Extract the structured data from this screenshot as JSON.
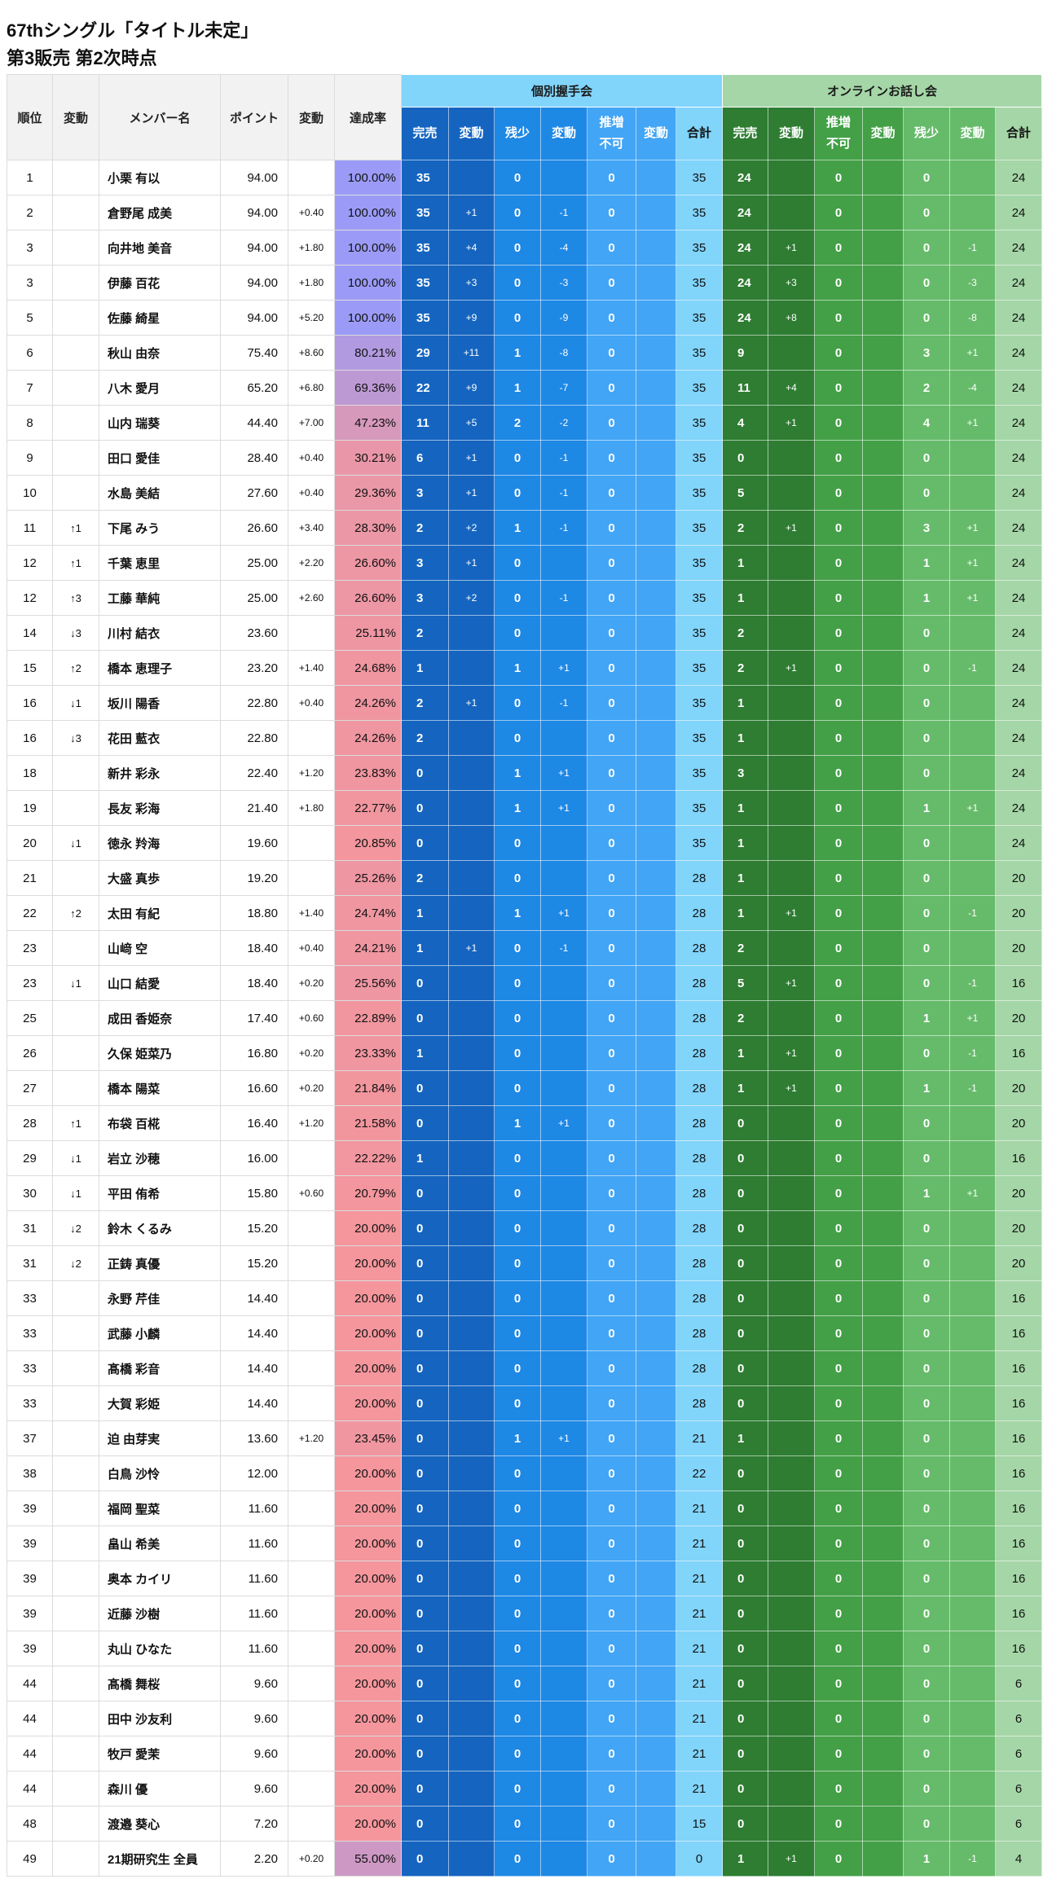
{
  "title": "67thシングル「タイトル未定」",
  "subtitle": "第3販売 第2次時点",
  "headers": {
    "rank": "順位",
    "move": "変動",
    "name": "メンバー名",
    "points": "ポイント",
    "delta": "変動",
    "rate": "達成率",
    "handshake_group": "個別握手会",
    "online_group": "オンラインお話し会",
    "handshake_cols": [
      "完売",
      "変動",
      "残少",
      "変動",
      "推増\n不可",
      "変動",
      "合計"
    ],
    "online_cols": [
      "完売",
      "変動",
      "推増\n不可",
      "変動",
      "残少",
      "変動",
      "合計"
    ]
  },
  "colors": {
    "handshake": [
      "#1565c0",
      "#1e88e5",
      "#42a5f5",
      "#81d4fa"
    ],
    "online": [
      "#2e7d32",
      "#43a047",
      "#66bb6a",
      "#a5d6a7"
    ],
    "rate_high": "#9b9bf7",
    "rate_low": "#f4969c"
  },
  "rows": [
    {
      "rank": "1",
      "move": "",
      "name": "小栗 有以",
      "points": "94.00",
      "delta": "",
      "rate": "100.00%",
      "handshake": [
        "35",
        "",
        "0",
        "",
        "0",
        "",
        "35"
      ],
      "online": [
        "24",
        "",
        "0",
        "",
        "0",
        "",
        "24"
      ]
    },
    {
      "rank": "2",
      "move": "",
      "name": "倉野尾 成美",
      "points": "94.00",
      "delta": "+0.40",
      "rate": "100.00%",
      "handshake": [
        "35",
        "+1",
        "0",
        "-1",
        "0",
        "",
        "35"
      ],
      "online": [
        "24",
        "",
        "0",
        "",
        "0",
        "",
        "24"
      ]
    },
    {
      "rank": "3",
      "move": "",
      "name": "向井地 美音",
      "points": "94.00",
      "delta": "+1.80",
      "rate": "100.00%",
      "handshake": [
        "35",
        "+4",
        "0",
        "-4",
        "0",
        "",
        "35"
      ],
      "online": [
        "24",
        "+1",
        "0",
        "",
        "0",
        "-1",
        "24"
      ]
    },
    {
      "rank": "3",
      "move": "",
      "name": "伊藤 百花",
      "points": "94.00",
      "delta": "+1.80",
      "rate": "100.00%",
      "handshake": [
        "35",
        "+3",
        "0",
        "-3",
        "0",
        "",
        "35"
      ],
      "online": [
        "24",
        "+3",
        "0",
        "",
        "0",
        "-3",
        "24"
      ]
    },
    {
      "rank": "5",
      "move": "",
      "name": "佐藤 綺星",
      "points": "94.00",
      "delta": "+5.20",
      "rate": "100.00%",
      "handshake": [
        "35",
        "+9",
        "0",
        "-9",
        "0",
        "",
        "35"
      ],
      "online": [
        "24",
        "+8",
        "0",
        "",
        "0",
        "-8",
        "24"
      ]
    },
    {
      "rank": "6",
      "move": "",
      "name": "秋山 由奈",
      "points": "75.40",
      "delta": "+8.60",
      "rate": "80.21%",
      "handshake": [
        "29",
        "+11",
        "1",
        "-8",
        "0",
        "",
        "35"
      ],
      "online": [
        "9",
        "",
        "0",
        "",
        "3",
        "+1",
        "24"
      ]
    },
    {
      "rank": "7",
      "move": "",
      "name": "八木 愛月",
      "points": "65.20",
      "delta": "+6.80",
      "rate": "69.36%",
      "handshake": [
        "22",
        "+9",
        "1",
        "-7",
        "0",
        "",
        "35"
      ],
      "online": [
        "11",
        "+4",
        "0",
        "",
        "2",
        "-4",
        "24"
      ]
    },
    {
      "rank": "8",
      "move": "",
      "name": "山内 瑞葵",
      "points": "44.40",
      "delta": "+7.00",
      "rate": "47.23%",
      "handshake": [
        "11",
        "+5",
        "2",
        "-2",
        "0",
        "",
        "35"
      ],
      "online": [
        "4",
        "+1",
        "0",
        "",
        "4",
        "+1",
        "24"
      ]
    },
    {
      "rank": "9",
      "move": "",
      "name": "田口 愛佳",
      "points": "28.40",
      "delta": "+0.40",
      "rate": "30.21%",
      "handshake": [
        "6",
        "+1",
        "0",
        "-1",
        "0",
        "",
        "35"
      ],
      "online": [
        "0",
        "",
        "0",
        "",
        "0",
        "",
        "24"
      ]
    },
    {
      "rank": "10",
      "move": "",
      "name": "水島 美結",
      "points": "27.60",
      "delta": "+0.40",
      "rate": "29.36%",
      "handshake": [
        "3",
        "+1",
        "0",
        "-1",
        "0",
        "",
        "35"
      ],
      "online": [
        "5",
        "",
        "0",
        "",
        "0",
        "",
        "24"
      ]
    },
    {
      "rank": "11",
      "move": "↑1",
      "name": "下尾 みう",
      "points": "26.60",
      "delta": "+3.40",
      "rate": "28.30%",
      "handshake": [
        "2",
        "+2",
        "1",
        "-1",
        "0",
        "",
        "35"
      ],
      "online": [
        "2",
        "+1",
        "0",
        "",
        "3",
        "+1",
        "24"
      ]
    },
    {
      "rank": "12",
      "move": "↑1",
      "name": "千葉 恵里",
      "points": "25.00",
      "delta": "+2.20",
      "rate": "26.60%",
      "handshake": [
        "3",
        "+1",
        "0",
        "",
        "0",
        "",
        "35"
      ],
      "online": [
        "1",
        "",
        "0",
        "",
        "1",
        "+1",
        "24"
      ]
    },
    {
      "rank": "12",
      "move": "↑3",
      "name": "工藤 華純",
      "points": "25.00",
      "delta": "+2.60",
      "rate": "26.60%",
      "handshake": [
        "3",
        "+2",
        "0",
        "-1",
        "0",
        "",
        "35"
      ],
      "online": [
        "1",
        "",
        "0",
        "",
        "1",
        "+1",
        "24"
      ]
    },
    {
      "rank": "14",
      "move": "↓3",
      "name": "川村 結衣",
      "points": "23.60",
      "delta": "",
      "rate": "25.11%",
      "handshake": [
        "2",
        "",
        "0",
        "",
        "0",
        "",
        "35"
      ],
      "online": [
        "2",
        "",
        "0",
        "",
        "0",
        "",
        "24"
      ]
    },
    {
      "rank": "15",
      "move": "↑2",
      "name": "橋本 恵理子",
      "points": "23.20",
      "delta": "+1.40",
      "rate": "24.68%",
      "handshake": [
        "1",
        "",
        "1",
        "+1",
        "0",
        "",
        "35"
      ],
      "online": [
        "2",
        "+1",
        "0",
        "",
        "0",
        "-1",
        "24"
      ]
    },
    {
      "rank": "16",
      "move": "↓1",
      "name": "坂川 陽香",
      "points": "22.80",
      "delta": "+0.40",
      "rate": "24.26%",
      "handshake": [
        "2",
        "+1",
        "0",
        "-1",
        "0",
        "",
        "35"
      ],
      "online": [
        "1",
        "",
        "0",
        "",
        "0",
        "",
        "24"
      ]
    },
    {
      "rank": "16",
      "move": "↓3",
      "name": "花田 藍衣",
      "points": "22.80",
      "delta": "",
      "rate": "24.26%",
      "handshake": [
        "2",
        "",
        "0",
        "",
        "0",
        "",
        "35"
      ],
      "online": [
        "1",
        "",
        "0",
        "",
        "0",
        "",
        "24"
      ]
    },
    {
      "rank": "18",
      "move": "",
      "name": "新井 彩永",
      "points": "22.40",
      "delta": "+1.20",
      "rate": "23.83%",
      "handshake": [
        "0",
        "",
        "1",
        "+1",
        "0",
        "",
        "35"
      ],
      "online": [
        "3",
        "",
        "0",
        "",
        "0",
        "",
        "24"
      ]
    },
    {
      "rank": "19",
      "move": "",
      "name": "長友 彩海",
      "points": "21.40",
      "delta": "+1.80",
      "rate": "22.77%",
      "handshake": [
        "0",
        "",
        "1",
        "+1",
        "0",
        "",
        "35"
      ],
      "online": [
        "1",
        "",
        "0",
        "",
        "1",
        "+1",
        "24"
      ]
    },
    {
      "rank": "20",
      "move": "↓1",
      "name": "徳永 羚海",
      "points": "19.60",
      "delta": "",
      "rate": "20.85%",
      "handshake": [
        "0",
        "",
        "0",
        "",
        "0",
        "",
        "35"
      ],
      "online": [
        "1",
        "",
        "0",
        "",
        "0",
        "",
        "24"
      ]
    },
    {
      "rank": "21",
      "move": "",
      "name": "大盛 真歩",
      "points": "19.20",
      "delta": "",
      "rate": "25.26%",
      "handshake": [
        "2",
        "",
        "0",
        "",
        "0",
        "",
        "28"
      ],
      "online": [
        "1",
        "",
        "0",
        "",
        "0",
        "",
        "20"
      ]
    },
    {
      "rank": "22",
      "move": "↑2",
      "name": "太田 有紀",
      "points": "18.80",
      "delta": "+1.40",
      "rate": "24.74%",
      "handshake": [
        "1",
        "",
        "1",
        "+1",
        "0",
        "",
        "28"
      ],
      "online": [
        "1",
        "+1",
        "0",
        "",
        "0",
        "-1",
        "20"
      ]
    },
    {
      "rank": "23",
      "move": "",
      "name": "山﨑 空",
      "points": "18.40",
      "delta": "+0.40",
      "rate": "24.21%",
      "handshake": [
        "1",
        "+1",
        "0",
        "-1",
        "0",
        "",
        "28"
      ],
      "online": [
        "2",
        "",
        "0",
        "",
        "0",
        "",
        "20"
      ]
    },
    {
      "rank": "23",
      "move": "↓1",
      "name": "山口 結愛",
      "points": "18.40",
      "delta": "+0.20",
      "rate": "25.56%",
      "handshake": [
        "0",
        "",
        "0",
        "",
        "0",
        "",
        "28"
      ],
      "online": [
        "5",
        "+1",
        "0",
        "",
        "0",
        "-1",
        "16"
      ]
    },
    {
      "rank": "25",
      "move": "",
      "name": "成田 香姫奈",
      "points": "17.40",
      "delta": "+0.60",
      "rate": "22.89%",
      "handshake": [
        "0",
        "",
        "0",
        "",
        "0",
        "",
        "28"
      ],
      "online": [
        "2",
        "",
        "0",
        "",
        "1",
        "+1",
        "20"
      ]
    },
    {
      "rank": "26",
      "move": "",
      "name": "久保 姫菜乃",
      "points": "16.80",
      "delta": "+0.20",
      "rate": "23.33%",
      "handshake": [
        "1",
        "",
        "0",
        "",
        "0",
        "",
        "28"
      ],
      "online": [
        "1",
        "+1",
        "0",
        "",
        "0",
        "-1",
        "16"
      ]
    },
    {
      "rank": "27",
      "move": "",
      "name": "橋本 陽菜",
      "points": "16.60",
      "delta": "+0.20",
      "rate": "21.84%",
      "handshake": [
        "0",
        "",
        "0",
        "",
        "0",
        "",
        "28"
      ],
      "online": [
        "1",
        "+1",
        "0",
        "",
        "1",
        "-1",
        "20"
      ]
    },
    {
      "rank": "28",
      "move": "↑1",
      "name": "布袋 百椛",
      "points": "16.40",
      "delta": "+1.20",
      "rate": "21.58%",
      "handshake": [
        "0",
        "",
        "1",
        "+1",
        "0",
        "",
        "28"
      ],
      "online": [
        "0",
        "",
        "0",
        "",
        "0",
        "",
        "20"
      ]
    },
    {
      "rank": "29",
      "move": "↓1",
      "name": "岩立 沙穂",
      "points": "16.00",
      "delta": "",
      "rate": "22.22%",
      "handshake": [
        "1",
        "",
        "0",
        "",
        "0",
        "",
        "28"
      ],
      "online": [
        "0",
        "",
        "0",
        "",
        "0",
        "",
        "16"
      ]
    },
    {
      "rank": "30",
      "move": "↓1",
      "name": "平田 侑希",
      "points": "15.80",
      "delta": "+0.60",
      "rate": "20.79%",
      "handshake": [
        "0",
        "",
        "0",
        "",
        "0",
        "",
        "28"
      ],
      "online": [
        "0",
        "",
        "0",
        "",
        "1",
        "+1",
        "20"
      ]
    },
    {
      "rank": "31",
      "move": "↓2",
      "name": "鈴木 くるみ",
      "points": "15.20",
      "delta": "",
      "rate": "20.00%",
      "handshake": [
        "0",
        "",
        "0",
        "",
        "0",
        "",
        "28"
      ],
      "online": [
        "0",
        "",
        "0",
        "",
        "0",
        "",
        "20"
      ]
    },
    {
      "rank": "31",
      "move": "↓2",
      "name": "正鋳 真優",
      "points": "15.20",
      "delta": "",
      "rate": "20.00%",
      "handshake": [
        "0",
        "",
        "0",
        "",
        "0",
        "",
        "28"
      ],
      "online": [
        "0",
        "",
        "0",
        "",
        "0",
        "",
        "20"
      ]
    },
    {
      "rank": "33",
      "move": "",
      "name": "永野 芹佳",
      "points": "14.40",
      "delta": "",
      "rate": "20.00%",
      "handshake": [
        "0",
        "",
        "0",
        "",
        "0",
        "",
        "28"
      ],
      "online": [
        "0",
        "",
        "0",
        "",
        "0",
        "",
        "16"
      ]
    },
    {
      "rank": "33",
      "move": "",
      "name": "武藤 小麟",
      "points": "14.40",
      "delta": "",
      "rate": "20.00%",
      "handshake": [
        "0",
        "",
        "0",
        "",
        "0",
        "",
        "28"
      ],
      "online": [
        "0",
        "",
        "0",
        "",
        "0",
        "",
        "16"
      ]
    },
    {
      "rank": "33",
      "move": "",
      "name": "髙橋 彩音",
      "points": "14.40",
      "delta": "",
      "rate": "20.00%",
      "handshake": [
        "0",
        "",
        "0",
        "",
        "0",
        "",
        "28"
      ],
      "online": [
        "0",
        "",
        "0",
        "",
        "0",
        "",
        "16"
      ]
    },
    {
      "rank": "33",
      "move": "",
      "name": "大賀 彩姫",
      "points": "14.40",
      "delta": "",
      "rate": "20.00%",
      "handshake": [
        "0",
        "",
        "0",
        "",
        "0",
        "",
        "28"
      ],
      "online": [
        "0",
        "",
        "0",
        "",
        "0",
        "",
        "16"
      ]
    },
    {
      "rank": "37",
      "move": "",
      "name": "迫 由芽実",
      "points": "13.60",
      "delta": "+1.20",
      "rate": "23.45%",
      "handshake": [
        "0",
        "",
        "1",
        "+1",
        "0",
        "",
        "21"
      ],
      "online": [
        "1",
        "",
        "0",
        "",
        "0",
        "",
        "16"
      ]
    },
    {
      "rank": "38",
      "move": "",
      "name": "白鳥 沙怜",
      "points": "12.00",
      "delta": "",
      "rate": "20.00%",
      "handshake": [
        "0",
        "",
        "0",
        "",
        "0",
        "",
        "22"
      ],
      "online": [
        "0",
        "",
        "0",
        "",
        "0",
        "",
        "16"
      ]
    },
    {
      "rank": "39",
      "move": "",
      "name": "福岡 聖菜",
      "points": "11.60",
      "delta": "",
      "rate": "20.00%",
      "handshake": [
        "0",
        "",
        "0",
        "",
        "0",
        "",
        "21"
      ],
      "online": [
        "0",
        "",
        "0",
        "",
        "0",
        "",
        "16"
      ]
    },
    {
      "rank": "39",
      "move": "",
      "name": "畠山 希美",
      "points": "11.60",
      "delta": "",
      "rate": "20.00%",
      "handshake": [
        "0",
        "",
        "0",
        "",
        "0",
        "",
        "21"
      ],
      "online": [
        "0",
        "",
        "0",
        "",
        "0",
        "",
        "16"
      ]
    },
    {
      "rank": "39",
      "move": "",
      "name": "奥本 カイリ",
      "points": "11.60",
      "delta": "",
      "rate": "20.00%",
      "handshake": [
        "0",
        "",
        "0",
        "",
        "0",
        "",
        "21"
      ],
      "online": [
        "0",
        "",
        "0",
        "",
        "0",
        "",
        "16"
      ]
    },
    {
      "rank": "39",
      "move": "",
      "name": "近藤 沙樹",
      "points": "11.60",
      "delta": "",
      "rate": "20.00%",
      "handshake": [
        "0",
        "",
        "0",
        "",
        "0",
        "",
        "21"
      ],
      "online": [
        "0",
        "",
        "0",
        "",
        "0",
        "",
        "16"
      ]
    },
    {
      "rank": "39",
      "move": "",
      "name": "丸山 ひなた",
      "points": "11.60",
      "delta": "",
      "rate": "20.00%",
      "handshake": [
        "0",
        "",
        "0",
        "",
        "0",
        "",
        "21"
      ],
      "online": [
        "0",
        "",
        "0",
        "",
        "0",
        "",
        "16"
      ]
    },
    {
      "rank": "44",
      "move": "",
      "name": "髙橋 舞桜",
      "points": "9.60",
      "delta": "",
      "rate": "20.00%",
      "handshake": [
        "0",
        "",
        "0",
        "",
        "0",
        "",
        "21"
      ],
      "online": [
        "0",
        "",
        "0",
        "",
        "0",
        "",
        "6"
      ]
    },
    {
      "rank": "44",
      "move": "",
      "name": "田中 沙友利",
      "points": "9.60",
      "delta": "",
      "rate": "20.00%",
      "handshake": [
        "0",
        "",
        "0",
        "",
        "0",
        "",
        "21"
      ],
      "online": [
        "0",
        "",
        "0",
        "",
        "0",
        "",
        "6"
      ]
    },
    {
      "rank": "44",
      "move": "",
      "name": "牧戸 愛茉",
      "points": "9.60",
      "delta": "",
      "rate": "20.00%",
      "handshake": [
        "0",
        "",
        "0",
        "",
        "0",
        "",
        "21"
      ],
      "online": [
        "0",
        "",
        "0",
        "",
        "0",
        "",
        "6"
      ]
    },
    {
      "rank": "44",
      "move": "",
      "name": "森川 優",
      "points": "9.60",
      "delta": "",
      "rate": "20.00%",
      "handshake": [
        "0",
        "",
        "0",
        "",
        "0",
        "",
        "21"
      ],
      "online": [
        "0",
        "",
        "0",
        "",
        "0",
        "",
        "6"
      ]
    },
    {
      "rank": "48",
      "move": "",
      "name": "渡邉 葵心",
      "points": "7.20",
      "delta": "",
      "rate": "20.00%",
      "handshake": [
        "0",
        "",
        "0",
        "",
        "0",
        "",
        "15"
      ],
      "online": [
        "0",
        "",
        "0",
        "",
        "0",
        "",
        "6"
      ]
    },
    {
      "rank": "49",
      "move": "",
      "name": "21期研究生 全員",
      "points": "2.20",
      "delta": "+0.20",
      "rate": "55.00%",
      "handshake": [
        "0",
        "",
        "0",
        "",
        "0",
        "",
        "0"
      ],
      "online": [
        "1",
        "+1",
        "0",
        "",
        "1",
        "-1",
        "4"
      ]
    }
  ]
}
